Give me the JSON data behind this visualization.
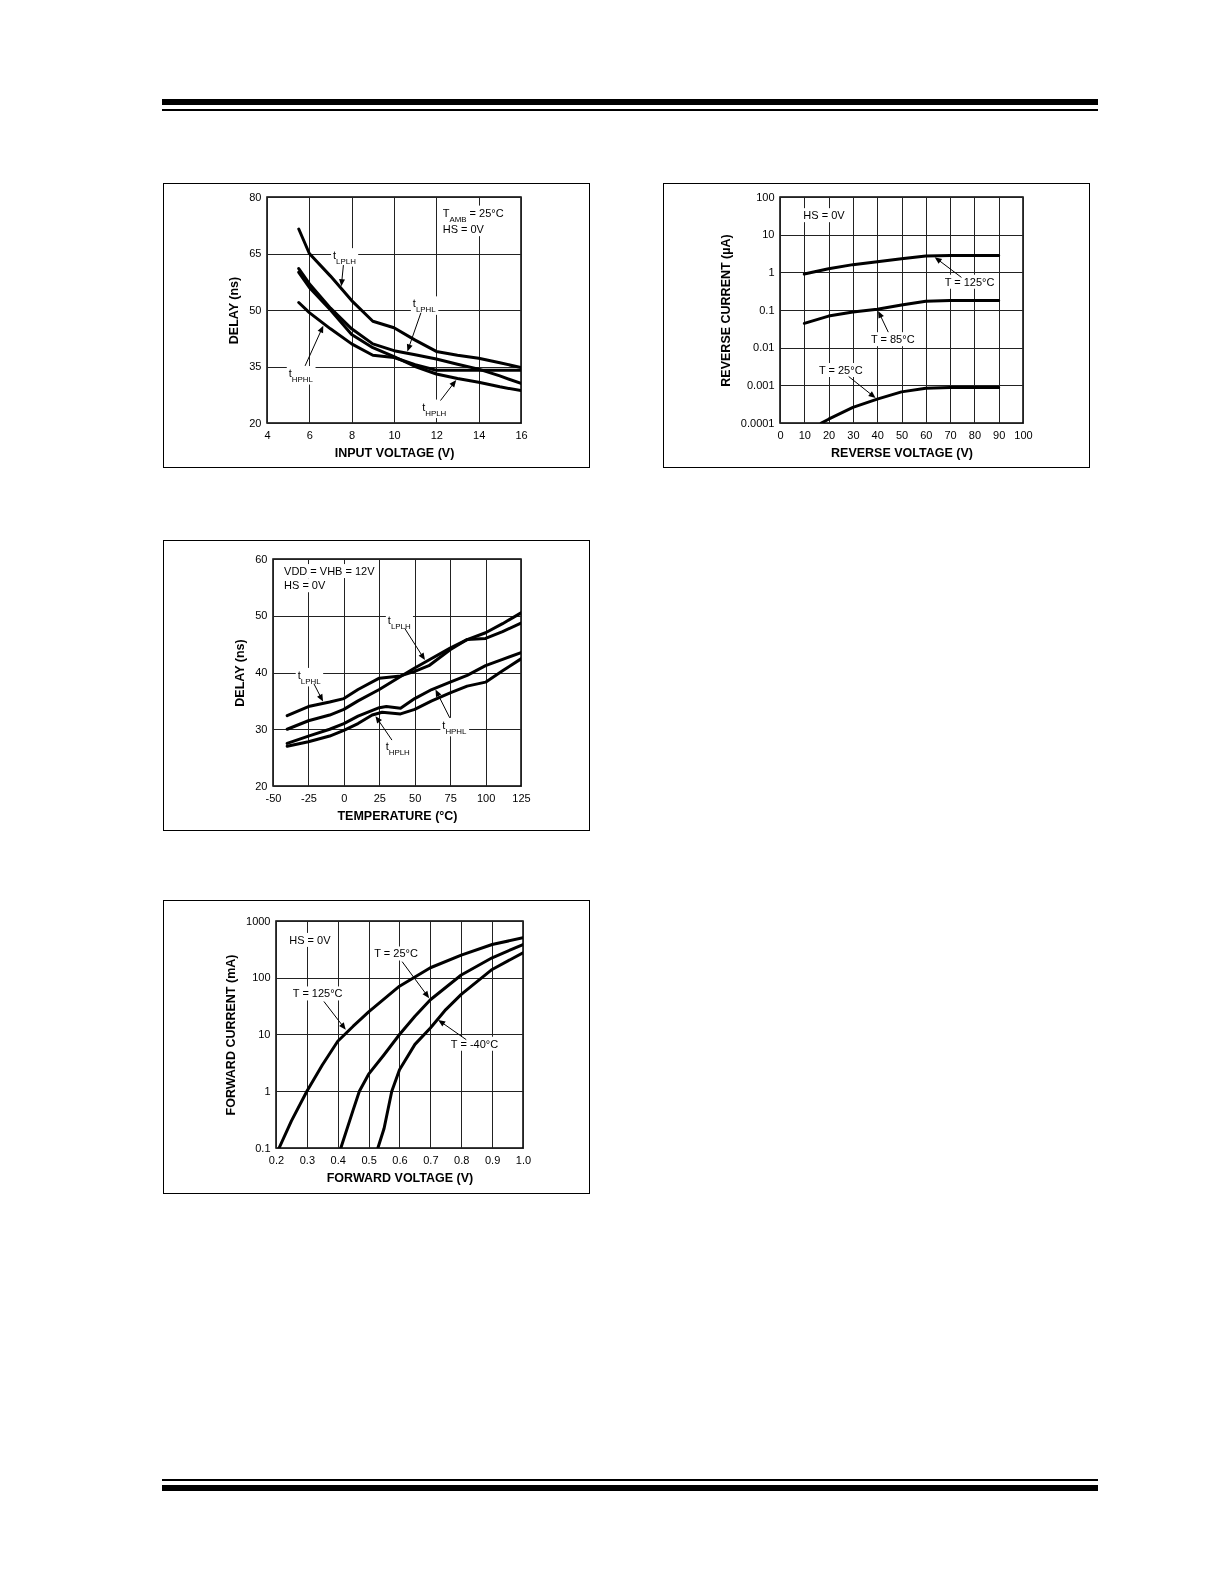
{
  "chart_data": [
    {
      "type": "line",
      "xlabel": "INPUT VOLTAGE (V)",
      "ylabel": "DELAY (ns)",
      "xlim": [
        4,
        16
      ],
      "ylim": [
        20,
        80
      ],
      "xticks": [
        4,
        6,
        8,
        10,
        12,
        14,
        16
      ],
      "yticks": [
        20,
        35,
        50,
        65,
        80
      ],
      "grid": true,
      "annotations": [
        "T$_{AMB}$ = 25°C",
        "HS = 0V",
        {
          "text": "t$_{LPLH}$",
          "x": 7.5,
          "y": 55.8
        },
        {
          "text": "t$_{LPHL}$",
          "x": 10.6,
          "y": 38.5
        },
        {
          "text": "t$_{HPLH}$",
          "x": 13,
          "y": 31.8
        },
        {
          "text": "t$_{HPHL}$",
          "x": 6.7,
          "y": 46.3
        }
      ],
      "series": [
        {
          "color": "#000000",
          "x": [
            5.5,
            6,
            7,
            8,
            9,
            10,
            11,
            12,
            13,
            14,
            15,
            16
          ],
          "values": [
            71.5,
            65,
            59,
            52.5,
            47,
            45.3,
            42,
            39,
            38,
            37.2,
            36,
            34.7
          ]
        },
        {
          "color": "#000000",
          "x": [
            5.5,
            6,
            7,
            8,
            9,
            10,
            11,
            12,
            13,
            14,
            15,
            16
          ],
          "values": [
            61,
            57,
            50.5,
            45,
            41,
            39.2,
            38.1,
            37,
            35.6,
            34.3,
            32.5,
            30.5
          ]
        },
        {
          "color": "#000000",
          "x": [
            5.5,
            6,
            7,
            8,
            9,
            10,
            11,
            12,
            13,
            14,
            15,
            16
          ],
          "values": [
            60,
            56,
            50,
            43.5,
            40,
            37.6,
            35,
            33,
            31.8,
            30.8,
            29.6,
            28.6
          ]
        },
        {
          "color": "#000000",
          "x": [
            5.5,
            6,
            7,
            8,
            9,
            10,
            11,
            12,
            13,
            14,
            15,
            16
          ],
          "values": [
            52,
            49.3,
            45,
            41,
            38,
            37.4,
            35.5,
            34,
            34,
            34,
            34,
            34
          ]
        }
      ]
    },
    {
      "type": "line",
      "xlabel": "REVERSE VOLTAGE (V)",
      "ylabel": "REVERSE CURRENT (µA)",
      "xlim": [
        0,
        100
      ],
      "ylim": [
        0.0001,
        100
      ],
      "xticks": [
        0,
        10,
        20,
        30,
        40,
        50,
        60,
        70,
        80,
        90,
        100
      ],
      "yticks": [
        0.0001,
        0.001,
        0.01,
        0.1,
        1,
        10,
        100
      ],
      "grid": true,
      "log": "y",
      "annotations": [
        "HS = 0V",
        {
          "text": "T = 125°C",
          "x": 63,
          "y": 2.7
        },
        {
          "text": "T = 85°C",
          "x": 40,
          "y": 0.105
        },
        {
          "text": "T = 25°C",
          "x": 40,
          "y": 0.00043
        }
      ],
      "series": [
        {
          "color": "#000000",
          "x": [
            10,
            20,
            30,
            40,
            50,
            60,
            70,
            80,
            90
          ],
          "values": [
            0.9,
            1.25,
            1.6,
            1.9,
            2.3,
            2.7,
            2.8,
            2.8,
            2.8
          ]
        },
        {
          "color": "#000000",
          "x": [
            10,
            20,
            30,
            40,
            50,
            60,
            70,
            80,
            90
          ],
          "values": [
            0.044,
            0.069,
            0.089,
            0.105,
            0.135,
            0.17,
            0.18,
            0.18,
            0.18
          ]
        },
        {
          "color": "#000000",
          "x": [
            17,
            20,
            30,
            40,
            50,
            60,
            70,
            80,
            90
          ],
          "values": [
            0.0001,
            0.000126,
            0.00026,
            0.00043,
            0.00067,
            0.00084,
            0.00088,
            0.00088,
            0.00088
          ]
        }
      ]
    },
    {
      "type": "line",
      "xlabel": "TEMPERATURE (°C)",
      "ylabel": "DELAY (ns)",
      "xlim": [
        -50,
        125
      ],
      "ylim": [
        20,
        60
      ],
      "xticks": [
        -50,
        -25,
        0,
        25,
        50,
        75,
        100,
        125
      ],
      "yticks": [
        20,
        30,
        40,
        50,
        60
      ],
      "grid": true,
      "annotations": [
        "VDD = VHB = 12V",
        "HS = 0V",
        {
          "text": "t$_{LPLH}$",
          "x": 58,
          "y": 41.9
        },
        {
          "text": "t$_{LPHL}$",
          "x": -14,
          "y": 34.6
        },
        {
          "text": "t$_{HPHL}$",
          "x": 64,
          "y": 37.3
        },
        {
          "text": "t$_{HPLH}$",
          "x": 21.5,
          "y": 32.6
        }
      ],
      "series": [
        {
          "color": "#000000",
          "x": [
            -40,
            -25,
            -10,
            0,
            10,
            25,
            40,
            50,
            60,
            75,
            87,
            100,
            112,
            125
          ],
          "values": [
            30,
            31.5,
            32.5,
            33.5,
            35,
            37,
            39.3,
            40.8,
            42.2,
            44.3,
            45.8,
            47,
            48.6,
            50.5
          ]
        },
        {
          "color": "#000000",
          "x": [
            -40,
            -25,
            -10,
            0,
            10,
            25,
            40,
            50,
            60,
            75,
            87,
            100,
            112,
            125
          ],
          "values": [
            32.4,
            34,
            34.8,
            35.4,
            37,
            39,
            39.4,
            40.2,
            41.2,
            44,
            45.8,
            46,
            47.2,
            48.7
          ]
        },
        {
          "color": "#000000",
          "x": [
            -40,
            -25,
            -10,
            0,
            10,
            25,
            30,
            40,
            50,
            62,
            75,
            87,
            100,
            112,
            125
          ],
          "values": [
            27.5,
            28.8,
            30,
            31,
            32.3,
            33.8,
            34,
            33.7,
            35.4,
            37,
            38.3,
            39.5,
            41.2,
            42.3,
            43.5
          ]
        },
        {
          "color": "#000000",
          "x": [
            -40,
            -25,
            -10,
            0,
            10,
            20,
            27,
            40,
            50,
            62,
            75,
            87,
            100,
            112,
            125
          ],
          "values": [
            27,
            27.8,
            28.8,
            29.8,
            31,
            32.5,
            33,
            32.7,
            33.5,
            35,
            36.4,
            37.6,
            38.3,
            40.3,
            42.4
          ]
        }
      ]
    },
    {
      "type": "line",
      "xlabel": "FORWARD VOLTAGE (V)",
      "ylabel": "FORWARD CURRENT (mA)",
      "xlim": [
        0.2,
        1.0
      ],
      "ylim": [
        0.1,
        1000
      ],
      "xticks": [
        0.2,
        0.3,
        0.4,
        0.5,
        0.6,
        0.7,
        0.8,
        0.9,
        {
          "value": 1,
          "label": "1.0"
        }
      ],
      "yticks": [
        0.1,
        1,
        10,
        100,
        1000
      ],
      "grid": true,
      "log": "y",
      "annotations": [
        "HS = 0V",
        {
          "text": "T = 125°C",
          "x": 0.43,
          "y": 11.4
        },
        {
          "text": "T = 25°C",
          "x": 0.7,
          "y": 41
        },
        {
          "text": "T = -40°C",
          "x": 0.72,
          "y": 18.8
        }
      ],
      "series": [
        {
          "color": "#000000",
          "x": [
            0.21,
            0.25,
            0.3,
            0.35,
            0.4,
            0.45,
            0.5,
            0.6,
            0.7,
            0.8,
            0.9,
            1.0
          ],
          "values": [
            0.1,
            0.3,
            1,
            2.9,
            7.6,
            14,
            25,
            71,
            150,
            250,
            385,
            505
          ]
        },
        {
          "color": "#000000",
          "x": [
            0.41,
            0.45,
            0.47,
            0.5,
            0.55,
            0.6,
            0.65,
            0.7,
            0.8,
            0.9,
            1.0
          ],
          "values": [
            0.1,
            0.47,
            1,
            2,
            4.4,
            10,
            21,
            41,
            112,
            225,
            385
          ]
        },
        {
          "color": "#000000",
          "x": [
            0.53,
            0.55,
            0.575,
            0.6,
            0.65,
            0.7,
            0.75,
            0.8,
            0.9,
            1.0
          ],
          "values": [
            0.1,
            0.22,
            1,
            2.4,
            6.7,
            13,
            27.5,
            51,
            140,
            275
          ]
        }
      ]
    }
  ]
}
